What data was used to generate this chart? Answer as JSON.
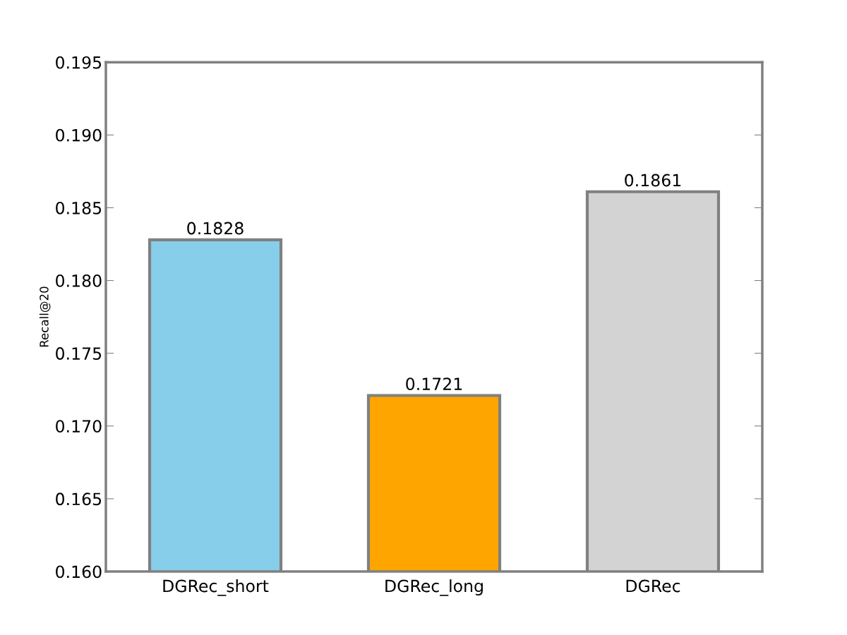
{
  "chart_data": {
    "type": "bar",
    "ylabel": "Recall@20",
    "categories": [
      "DGRec_short",
      "DGRec_long",
      "DGRec"
    ],
    "values": [
      0.1828,
      0.1721,
      0.1861
    ],
    "colors": [
      "#87ceeb",
      "#ffa500",
      "#d3d3d3"
    ],
    "data_labels": true,
    "ylim": [
      0.16,
      0.195
    ],
    "yticks": [
      {
        "value": 0.16,
        "label": "0.160"
      },
      {
        "value": 0.165,
        "label": "0.165"
      },
      {
        "value": 0.17,
        "label": "0.170"
      },
      {
        "value": 0.175,
        "label": "0.175"
      },
      {
        "value": 0.18,
        "label": "0.180"
      },
      {
        "value": 0.185,
        "label": "0.185"
      },
      {
        "value": 0.19,
        "label": "0.190"
      },
      {
        "value": 0.195,
        "label": "0.195"
      }
    ],
    "grid": false
  }
}
